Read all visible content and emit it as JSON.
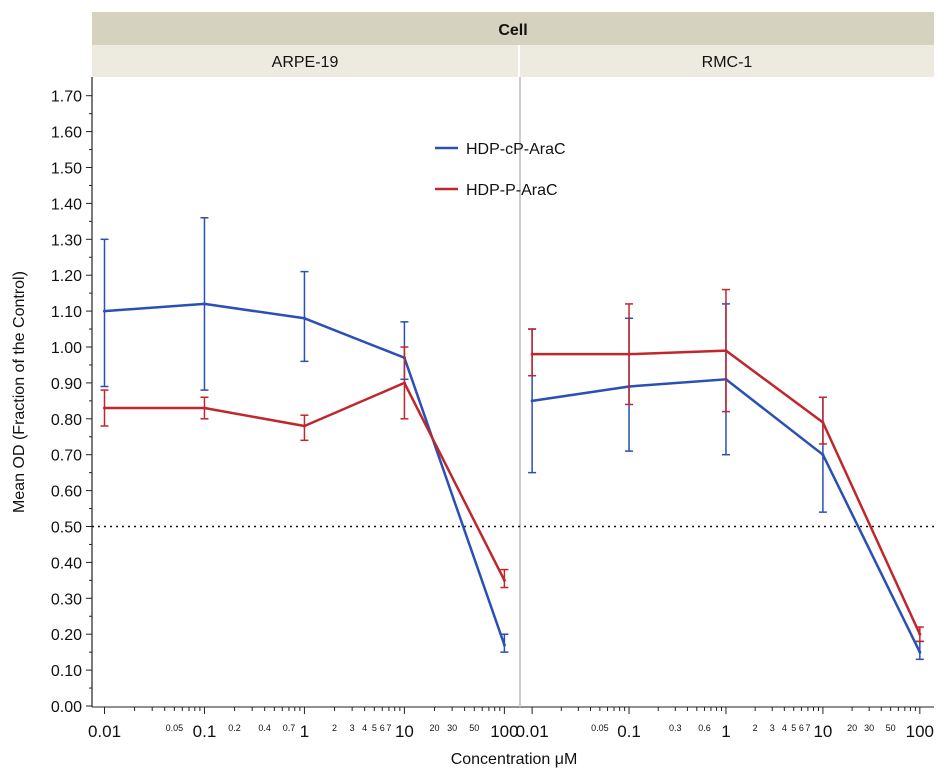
{
  "chart_data": {
    "type": "line",
    "header": "Cell",
    "xlabel": "Concentration μM",
    "ylabel": "Mean OD (Fraction of the Control)",
    "x_scale": "log",
    "xlim": [
      0.0075,
      140
    ],
    "ylim": [
      0,
      1.75
    ],
    "y_ticks": [
      "0.00",
      "0.10",
      "0.20",
      "0.30",
      "0.40",
      "0.50",
      "0.60",
      "0.70",
      "0.80",
      "0.90",
      "1.00",
      "1.10",
      "1.20",
      "1.30",
      "1.40",
      "1.50",
      "1.60",
      "1.70"
    ],
    "x_major_ticks": [
      "0.01",
      "0.1",
      "1",
      "10",
      "100"
    ],
    "x_minor_labels": {
      "ARPE-19": [
        "0.05",
        "0.2",
        "0.4",
        "0.7",
        "2",
        "3",
        "4",
        "5",
        "6",
        "7",
        "20",
        "30",
        "50"
      ],
      "RMC-1": [
        "0.05",
        "0.3",
        "0.6",
        "2",
        "3",
        "4",
        "5",
        "6",
        "7",
        "20",
        "30",
        "50"
      ]
    },
    "reference_line": 0.5,
    "legend": {
      "position": "top-center",
      "entries": [
        "HDP-cP-AraC",
        "HDP-P-AraC"
      ]
    },
    "colors": {
      "HDP-cP-AraC": "#2a4fb5",
      "HDP-P-AraC": "#c0272d"
    },
    "panels": [
      {
        "name": "ARPE-19",
        "x": [
          0.01,
          0.1,
          1,
          10,
          100
        ],
        "series": [
          {
            "name": "HDP-cP-AraC",
            "values": [
              1.1,
              1.12,
              1.08,
              0.97,
              0.17
            ],
            "err_low": [
              0.89,
              0.88,
              0.96,
              0.91,
              0.15
            ],
            "err_high": [
              1.3,
              1.36,
              1.21,
              1.07,
              0.2
            ]
          },
          {
            "name": "HDP-P-AraC",
            "values": [
              0.83,
              0.83,
              0.78,
              0.9,
              0.35
            ],
            "err_low": [
              0.78,
              0.8,
              0.74,
              0.8,
              0.33
            ],
            "err_high": [
              0.88,
              0.86,
              0.81,
              1.0,
              0.38
            ]
          }
        ]
      },
      {
        "name": "RMC-1",
        "x": [
          0.01,
          0.1,
          1,
          10,
          100
        ],
        "series": [
          {
            "name": "HDP-cP-AraC",
            "values": [
              0.85,
              0.89,
              0.91,
              0.7,
              0.15
            ],
            "err_low": [
              0.65,
              0.71,
              0.7,
              0.54,
              0.13
            ],
            "err_high": [
              1.05,
              1.08,
              1.12,
              0.86,
              0.18
            ]
          },
          {
            "name": "HDP-P-AraC",
            "values": [
              0.98,
              0.98,
              0.99,
              0.79,
              0.2
            ],
            "err_low": [
              0.92,
              0.84,
              0.82,
              0.73,
              0.18
            ],
            "err_high": [
              1.05,
              1.12,
              1.16,
              0.86,
              0.22
            ]
          }
        ]
      }
    ]
  }
}
